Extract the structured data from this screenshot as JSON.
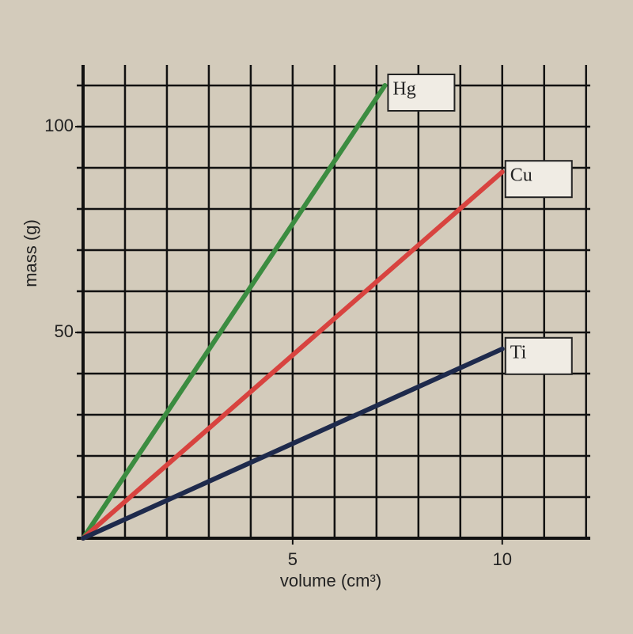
{
  "chart_data": {
    "type": "line",
    "xlabel": "volume (cm³)",
    "ylabel": "mass (g)",
    "series": [
      {
        "name": "Hg",
        "color": "#3b8c40",
        "x": [
          0,
          7.2
        ],
        "values": [
          0,
          110
        ]
      },
      {
        "name": "Cu",
        "color": "#d8433f",
        "x": [
          0,
          10
        ],
        "values": [
          0,
          89
        ]
      },
      {
        "name": "Ti",
        "color": "#1e2a4c",
        "x": [
          0,
          10
        ],
        "values": [
          0,
          46
        ]
      }
    ],
    "xlim": [
      0,
      12.1
    ],
    "ylim": [
      0,
      115
    ],
    "xticks": [
      5,
      10
    ],
    "yticks": [
      50,
      100
    ],
    "xgrid": [
      0,
      1,
      2,
      3,
      4,
      5,
      6,
      7,
      8,
      9,
      10,
      11,
      12
    ],
    "ygrid": [
      0,
      10,
      20,
      30,
      40,
      50,
      60,
      70,
      80,
      90,
      100,
      110
    ],
    "grid": true
  }
}
